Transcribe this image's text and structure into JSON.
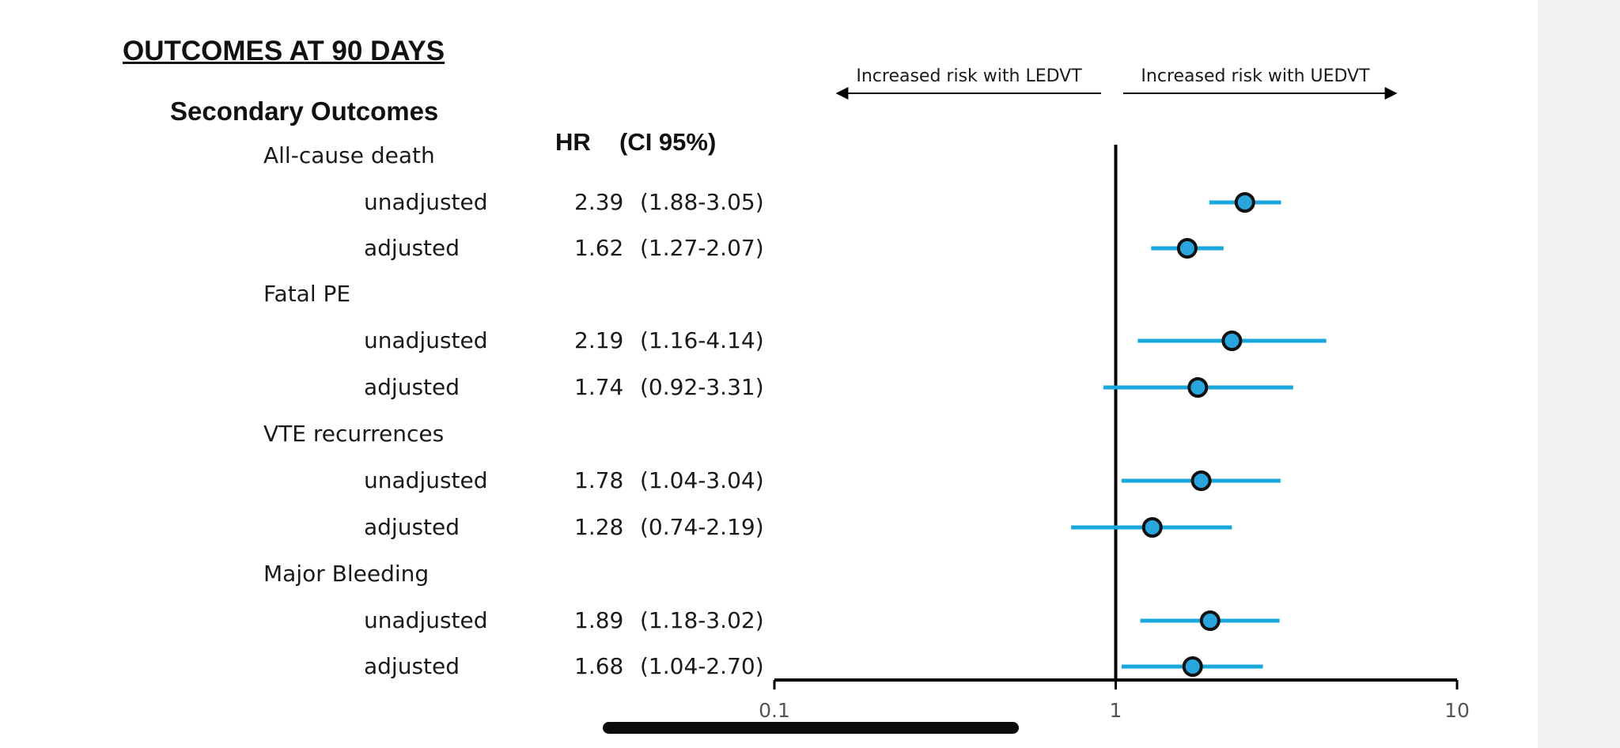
{
  "heading": "OUTCOMES AT 90 DAYS",
  "subheading": "Secondary Outcomes",
  "columns": {
    "hr": "HR",
    "ci": "(CI 95%)"
  },
  "colors": {
    "ci_line": "#1aa7dc",
    "point_fill": "#2aa6de",
    "point_stroke": "#111111",
    "axis": "#000000"
  },
  "chart_data": {
    "type": "scatter",
    "x_scale": "log",
    "xlim": [
      0.1,
      10
    ],
    "x_ticks": [
      "0.1",
      "1",
      "10"
    ],
    "reference_line": 1,
    "direction_labels": {
      "left": "Increased risk with LEDVT",
      "right": "Increased risk with UEDVT"
    },
    "groups": [
      {
        "label": "All-cause death",
        "rows": [
          {
            "label": "unadjusted",
            "hr": 2.39,
            "lo": 1.88,
            "hi": 3.05,
            "hr_text": "2.39",
            "ci_text": "(1.88-3.05)"
          },
          {
            "label": "adjusted",
            "hr": 1.62,
            "lo": 1.27,
            "hi": 2.07,
            "hr_text": "1.62",
            "ci_text": "(1.27-2.07)"
          }
        ]
      },
      {
        "label": "Fatal PE",
        "rows": [
          {
            "label": "unadjusted",
            "hr": 2.19,
            "lo": 1.16,
            "hi": 4.14,
            "hr_text": "2.19",
            "ci_text": "(1.16-4.14)"
          },
          {
            "label": "adjusted",
            "hr": 1.74,
            "lo": 0.92,
            "hi": 3.31,
            "hr_text": "1.74",
            "ci_text": "(0.92-3.31)"
          }
        ]
      },
      {
        "label": "VTE recurrences",
        "rows": [
          {
            "label": "unadjusted",
            "hr": 1.78,
            "lo": 1.04,
            "hi": 3.04,
            "hr_text": "1.78",
            "ci_text": "(1.04-3.04)"
          },
          {
            "label": "adjusted",
            "hr": 1.28,
            "lo": 0.74,
            "hi": 2.19,
            "hr_text": "1.28",
            "ci_text": "(0.74-2.19)"
          }
        ]
      },
      {
        "label": "Major Bleeding",
        "rows": [
          {
            "label": "unadjusted",
            "hr": 1.89,
            "lo": 1.18,
            "hi": 3.02,
            "hr_text": "1.89",
            "ci_text": "(1.18-3.02)"
          },
          {
            "label": "adjusted",
            "hr": 1.68,
            "lo": 1.04,
            "hi": 2.7,
            "hr_text": "1.68",
            "ci_text": "(1.04-2.70)"
          }
        ]
      }
    ]
  }
}
